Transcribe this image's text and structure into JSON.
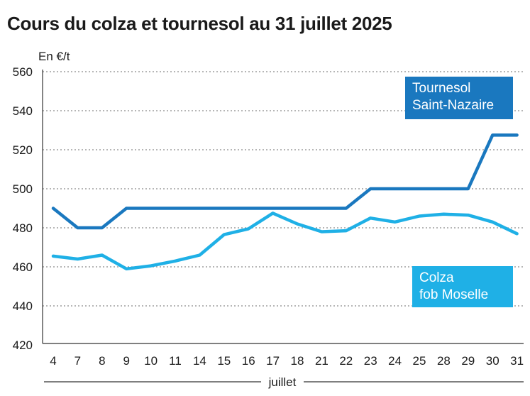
{
  "chart_data": {
    "type": "line",
    "title": "Cours du colza et tournesol au 31 juillet 2025",
    "ylabel": "En €/t",
    "xlabel": "juillet",
    "ylim": [
      420,
      560
    ],
    "yticks": [
      420,
      440,
      460,
      480,
      500,
      520,
      540,
      560
    ],
    "categories": [
      "4",
      "7",
      "8",
      "9",
      "10",
      "11",
      "14",
      "15",
      "16",
      "17",
      "18",
      "21",
      "22",
      "23",
      "24",
      "25",
      "28",
      "29",
      "30",
      "31"
    ],
    "grid": true,
    "series": [
      {
        "name": "Tournesol Saint-Nazaire",
        "legend_lines": [
          "Tournesol",
          "Saint-Nazaire"
        ],
        "color": "#1a78bf",
        "values": [
          490,
          480,
          480,
          490,
          490,
          490,
          490,
          490,
          490,
          490,
          490,
          490,
          490,
          500,
          500,
          500,
          500,
          500,
          527.5,
          527.5
        ]
      },
      {
        "name": "Colza fob Moselle",
        "legend_lines": [
          "Colza",
          "fob Moselle"
        ],
        "color": "#1fb0e6",
        "values": [
          465.5,
          464,
          466,
          459,
          460.5,
          463,
          466,
          476.5,
          479.5,
          487.5,
          482,
          478,
          478.5,
          485,
          483,
          486,
          487,
          486.5,
          483,
          477
        ]
      }
    ]
  }
}
